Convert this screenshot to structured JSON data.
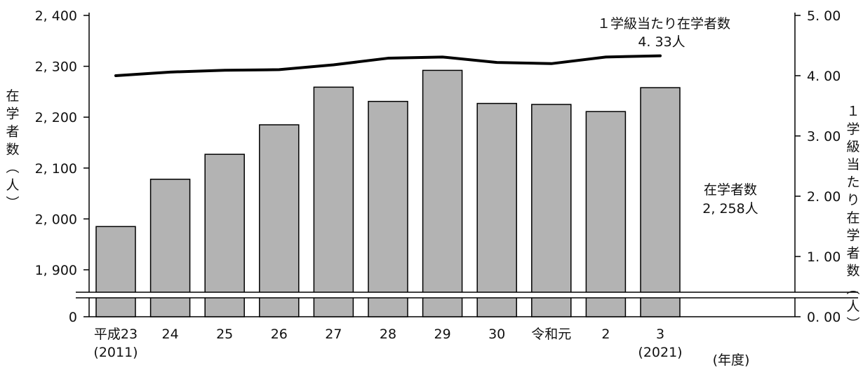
{
  "chart_data": {
    "type": "bar",
    "categories": [
      "平成23",
      "24",
      "25",
      "26",
      "27",
      "28",
      "29",
      "30",
      "令和元",
      "2",
      "3"
    ],
    "category_sublabels": [
      "(2011)",
      "",
      "",
      "",
      "",
      "",
      "",
      "",
      "",
      "",
      "(2021)"
    ],
    "series": [
      {
        "name": "在学者数",
        "type": "bar",
        "axis": "left",
        "color": "#b3b3b3",
        "values": [
          1985,
          2078,
          2127,
          2185,
          2259,
          2231,
          2292,
          2227,
          2225,
          2211,
          2258
        ]
      },
      {
        "name": "1学級当たり在学者数",
        "type": "line",
        "axis": "right",
        "color": "#000000",
        "values": [
          4.0,
          4.06,
          4.09,
          4.1,
          4.18,
          4.29,
          4.31,
          4.22,
          4.2,
          4.31,
          4.33
        ]
      }
    ],
    "y_left": {
      "label": "在学者数（人）",
      "ticks": [
        "0",
        "1, 900",
        "2, 000",
        "2, 100",
        "2, 200",
        "2, 300",
        "2, 400"
      ],
      "tick_values": [
        0,
        1900,
        2000,
        2100,
        2200,
        2300,
        2400
      ],
      "axis_break": [
        0,
        1900
      ],
      "ylim": [
        0,
        2400
      ]
    },
    "y_right": {
      "label": "１学級当たり在学者数（人）",
      "ticks": [
        "0. 00",
        "1. 00",
        "2. 00",
        "3. 00",
        "4. 00",
        "5. 00"
      ],
      "tick_values": [
        0,
        1,
        2,
        3,
        4,
        5
      ],
      "ylim": [
        0,
        5
      ]
    },
    "x_unit_label": "(年度)",
    "annotations": {
      "bar_title": "在学者数",
      "bar_value": "2, 258人",
      "line_title": "１学級当たり在学者数",
      "line_value": "4. 33人"
    },
    "grid": false,
    "legend": "none"
  }
}
